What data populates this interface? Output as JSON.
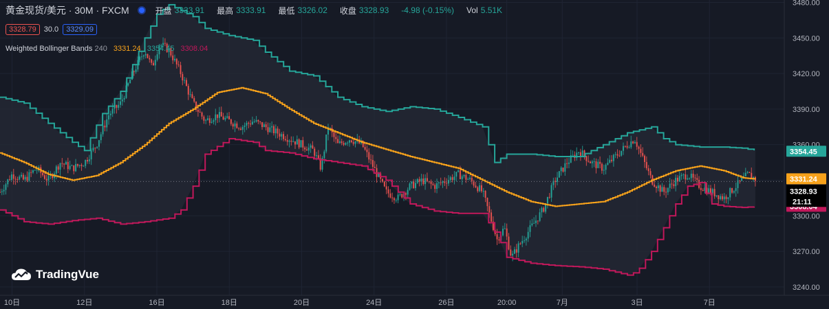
{
  "header": {
    "symbol": "黄金现货/美元 · 30M · FXCM",
    "open_label": "开盘",
    "open": "3333.91",
    "high_label": "最高",
    "high": "3333.91",
    "low_label": "最低",
    "low": "3326.02",
    "close_label": "收盘",
    "close": "3328.93",
    "change": "-4.98 (-0.15%)",
    "vol_label": "Vol",
    "vol": "5.51K"
  },
  "trade": {
    "sell": "3328.79",
    "spread": "30.0",
    "buy": "3329.09"
  },
  "indicator": {
    "name": "Weighted Bollinger Bands",
    "length": "240",
    "mid": "3331.24",
    "upper": "3354.45",
    "lower": "3308.04"
  },
  "logo": {
    "text": "TradingVue"
  },
  "colors": {
    "bg": "#161a25",
    "upper": "#26a69a",
    "lower": "#c2185b",
    "mid": "#f7a21b",
    "up": "#26a69a",
    "down": "#ef5350"
  },
  "chart_data": {
    "type": "candlestick",
    "y_ticks": [
      "3240.00",
      "3270.00",
      "3300.00",
      "3330.00",
      "3360.00",
      "3390.00",
      "3420.00",
      "3450.00",
      "3480.00"
    ],
    "ylim": [
      3233,
      3482
    ],
    "x_ticks": [
      {
        "label": "10日",
        "x": 0.5
      },
      {
        "label": "12日",
        "x": 3.5
      },
      {
        "label": "16日",
        "x": 6.5
      },
      {
        "label": "18日",
        "x": 9.5
      },
      {
        "label": "20日",
        "x": 12.5
      },
      {
        "label": "24日",
        "x": 15.5
      },
      {
        "label": "26日",
        "x": 18.5
      },
      {
        "label": "20:00",
        "x": 21
      },
      {
        "label": "7月",
        "x": 23.3
      },
      {
        "label": "3日",
        "x": 26.4
      },
      {
        "label": "7日",
        "x": 29.4
      }
    ],
    "xlim": [
      0,
      32.5
    ],
    "series": [
      {
        "name": "upper",
        "color": "#26a69a",
        "points": [
          [
            0,
            3400
          ],
          [
            1,
            3395
          ],
          [
            2,
            3378
          ],
          [
            3,
            3362
          ],
          [
            3.5,
            3355
          ],
          [
            4.2,
            3385
          ],
          [
            5,
            3405
          ],
          [
            6,
            3450
          ],
          [
            6.5,
            3470
          ],
          [
            7,
            3478
          ],
          [
            8,
            3468
          ],
          [
            8.5,
            3458
          ],
          [
            9.5,
            3452
          ],
          [
            10.5,
            3448
          ],
          [
            11,
            3438
          ],
          [
            12,
            3422
          ],
          [
            13,
            3418
          ],
          [
            14,
            3400
          ],
          [
            15,
            3392
          ],
          [
            16,
            3388
          ],
          [
            17,
            3392
          ],
          [
            18,
            3390
          ],
          [
            19,
            3383
          ],
          [
            20,
            3375
          ],
          [
            20.5,
            3345
          ],
          [
            21,
            3352
          ],
          [
            22,
            3352
          ],
          [
            23,
            3350
          ],
          [
            24,
            3350
          ],
          [
            25,
            3360
          ],
          [
            26,
            3370
          ],
          [
            27,
            3375
          ],
          [
            27.5,
            3365
          ],
          [
            28,
            3360
          ],
          [
            29,
            3358
          ],
          [
            30,
            3358
          ],
          [
            30.8,
            3357
          ],
          [
            31.3,
            3355
          ]
        ]
      },
      {
        "name": "lower",
        "color": "#c2185b",
        "points": [
          [
            0,
            3305
          ],
          [
            1,
            3295
          ],
          [
            2,
            3293
          ],
          [
            3,
            3296
          ],
          [
            4,
            3298
          ],
          [
            5,
            3293
          ],
          [
            6,
            3295
          ],
          [
            7,
            3298
          ],
          [
            7.5,
            3305
          ],
          [
            8,
            3325
          ],
          [
            8.5,
            3352
          ],
          [
            9.5,
            3365
          ],
          [
            10.5,
            3362
          ],
          [
            11,
            3355
          ],
          [
            12,
            3353
          ],
          [
            13,
            3348
          ],
          [
            14,
            3345
          ],
          [
            15,
            3342
          ],
          [
            16,
            3330
          ],
          [
            16.5,
            3320
          ],
          [
            17,
            3310
          ],
          [
            18,
            3304
          ],
          [
            19,
            3302
          ],
          [
            20,
            3302
          ],
          [
            20.7,
            3280
          ],
          [
            21,
            3265
          ],
          [
            22,
            3260
          ],
          [
            23,
            3258
          ],
          [
            24,
            3257
          ],
          [
            25,
            3255
          ],
          [
            26,
            3250
          ],
          [
            26.4,
            3253
          ],
          [
            27,
            3270
          ],
          [
            27.5,
            3290
          ],
          [
            28,
            3310
          ],
          [
            28.5,
            3325
          ],
          [
            29,
            3328
          ],
          [
            29.5,
            3310
          ],
          [
            30,
            3308
          ],
          [
            30.8,
            3307
          ],
          [
            31.3,
            3308
          ]
        ]
      },
      {
        "name": "mid",
        "color": "#f7a21b",
        "points": [
          [
            0,
            3353
          ],
          [
            1,
            3345
          ],
          [
            2,
            3335
          ],
          [
            3,
            3330
          ],
          [
            4,
            3334
          ],
          [
            5,
            3345
          ],
          [
            6,
            3360
          ],
          [
            7,
            3378
          ],
          [
            8,
            3390
          ],
          [
            9,
            3404
          ],
          [
            10,
            3408
          ],
          [
            11,
            3403
          ],
          [
            12,
            3390
          ],
          [
            13,
            3378
          ],
          [
            14,
            3370
          ],
          [
            15,
            3362
          ],
          [
            16,
            3356
          ],
          [
            17,
            3350
          ],
          [
            18,
            3345
          ],
          [
            19,
            3340
          ],
          [
            20,
            3330
          ],
          [
            21,
            3320
          ],
          [
            22,
            3312
          ],
          [
            23,
            3308
          ],
          [
            24,
            3310
          ],
          [
            25,
            3312
          ],
          [
            26,
            3320
          ],
          [
            27,
            3330
          ],
          [
            28,
            3338
          ],
          [
            29,
            3342
          ],
          [
            30,
            3338
          ],
          [
            30.8,
            3332
          ],
          [
            31.3,
            3331
          ]
        ]
      }
    ],
    "candle_path": [
      [
        0,
        3320
      ],
      [
        0.5,
        3335
      ],
      [
        1,
        3330
      ],
      [
        1.5,
        3340
      ],
      [
        2,
        3330
      ],
      [
        2.5,
        3345
      ],
      [
        3,
        3340
      ],
      [
        3.5,
        3345
      ],
      [
        4,
        3360
      ],
      [
        4.5,
        3385
      ],
      [
        5,
        3395
      ],
      [
        5.5,
        3420
      ],
      [
        6,
        3440
      ],
      [
        6.3,
        3425
      ],
      [
        6.6,
        3445
      ],
      [
        7,
        3440
      ],
      [
        7.5,
        3420
      ],
      [
        8,
        3395
      ],
      [
        8.5,
        3380
      ],
      [
        9,
        3385
      ],
      [
        9.5,
        3380
      ],
      [
        10,
        3375
      ],
      [
        10.5,
        3380
      ],
      [
        11,
        3375
      ],
      [
        11.5,
        3370
      ],
      [
        12,
        3365
      ],
      [
        12.5,
        3360
      ],
      [
        13,
        3355
      ],
      [
        13.3,
        3340
      ],
      [
        13.6,
        3375
      ],
      [
        14,
        3360
      ],
      [
        14.5,
        3365
      ],
      [
        15,
        3360
      ],
      [
        15.5,
        3340
      ],
      [
        16,
        3320
      ],
      [
        16.5,
        3315
      ],
      [
        17,
        3325
      ],
      [
        17.5,
        3330
      ],
      [
        18,
        3325
      ],
      [
        18.5,
        3330
      ],
      [
        19,
        3335
      ],
      [
        19.5,
        3330
      ],
      [
        20,
        3320
      ],
      [
        20.3,
        3300
      ],
      [
        20.6,
        3280
      ],
      [
        20.9,
        3290
      ],
      [
        21.2,
        3265
      ],
      [
        21.5,
        3275
      ],
      [
        22,
        3290
      ],
      [
        22.5,
        3305
      ],
      [
        23,
        3330
      ],
      [
        23.5,
        3345
      ],
      [
        24,
        3355
      ],
      [
        24.5,
        3345
      ],
      [
        25,
        3340
      ],
      [
        25.5,
        3350
      ],
      [
        26,
        3360
      ],
      [
        26.3,
        3365
      ],
      [
        26.6,
        3350
      ],
      [
        27,
        3330
      ],
      [
        27.5,
        3320
      ],
      [
        28,
        3330
      ],
      [
        28.5,
        3335
      ],
      [
        29,
        3325
      ],
      [
        29.5,
        3320
      ],
      [
        30,
        3315
      ],
      [
        30.5,
        3325
      ],
      [
        31,
        3335
      ],
      [
        31.3,
        3331
      ]
    ],
    "last_price": "3328.93",
    "countdown": "21:11",
    "price_labels": [
      {
        "text": "3354.45",
        "value": 3354.45,
        "color": "#26a69a"
      },
      {
        "text": "3331.24",
        "value": 3331.24,
        "color": "#f7a21b"
      },
      {
        "text": "3308.04",
        "value": 3308.04,
        "color": "#c2185b"
      }
    ]
  }
}
